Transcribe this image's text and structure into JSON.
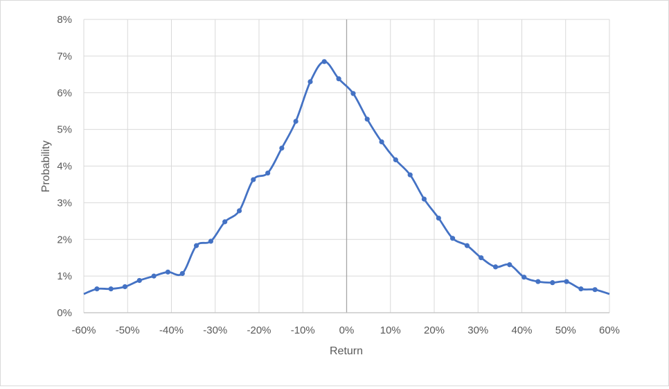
{
  "chart_data": {
    "type": "line",
    "title": "",
    "xlabel": "Return",
    "ylabel": "Probability",
    "xlim": [
      -60,
      60
    ],
    "ylim": [
      0,
      8
    ],
    "x_ticks": [
      -60,
      -50,
      -40,
      -30,
      -20,
      -10,
      0,
      10,
      20,
      30,
      40,
      50,
      60
    ],
    "x_tick_labels": [
      "-60%",
      "-50%",
      "-40%",
      "-30%",
      "-20%",
      "-10%",
      "0%",
      "10%",
      "20%",
      "30%",
      "40%",
      "50%",
      "60%"
    ],
    "y_ticks": [
      0,
      1,
      2,
      3,
      4,
      5,
      6,
      7,
      8
    ],
    "y_tick_labels": [
      "0%",
      "1%",
      "2%",
      "3%",
      "4%",
      "5%",
      "6%",
      "7%",
      "8%"
    ],
    "grid": true,
    "legend": "none",
    "series": [
      {
        "color": "#4472c4",
        "points": [
          [
            -57.0,
            0.65
          ],
          [
            -53.8,
            0.65
          ],
          [
            -50.6,
            0.71
          ],
          [
            -47.3,
            0.88
          ],
          [
            -44.0,
            1.0
          ],
          [
            -40.8,
            1.11
          ],
          [
            -37.5,
            1.07
          ],
          [
            -34.3,
            1.83
          ],
          [
            -31.0,
            1.95
          ],
          [
            -27.8,
            2.48
          ],
          [
            -24.5,
            2.78
          ],
          [
            -21.3,
            3.63
          ],
          [
            -18.0,
            3.81
          ],
          [
            -14.8,
            4.49
          ],
          [
            -11.6,
            5.22
          ],
          [
            -8.3,
            6.3
          ],
          [
            -5.1,
            6.85
          ],
          [
            -1.8,
            6.38
          ],
          [
            1.5,
            5.98
          ],
          [
            4.7,
            5.28
          ],
          [
            8.0,
            4.66
          ],
          [
            11.2,
            4.17
          ],
          [
            14.5,
            3.76
          ],
          [
            17.7,
            3.1
          ],
          [
            21.0,
            2.58
          ],
          [
            24.2,
            2.03
          ],
          [
            27.5,
            1.83
          ],
          [
            30.7,
            1.5
          ],
          [
            34.0,
            1.25
          ],
          [
            37.2,
            1.31
          ],
          [
            40.5,
            0.97
          ],
          [
            43.7,
            0.85
          ],
          [
            47.0,
            0.82
          ],
          [
            50.2,
            0.85
          ],
          [
            53.5,
            0.65
          ],
          [
            56.7,
            0.63
          ]
        ],
        "curve_extent": [
          [
            -60.0,
            0.51
          ],
          [
            60.0,
            0.51
          ]
        ]
      }
    ]
  }
}
